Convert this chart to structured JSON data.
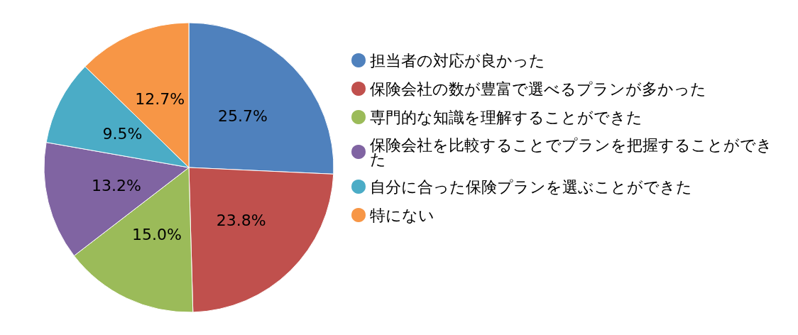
{
  "chart_data": {
    "type": "pie",
    "categories": [
      "担当者の対応が良かった",
      "保険会社の数が豊富で選べるプランが多かった",
      "専門的な知識を理解することができた",
      "保険会社を比較することでプランを把握することができた",
      "自分に合った保険プランを選ぶことができた",
      "特にない"
    ],
    "values": [
      25.7,
      23.8,
      15.0,
      13.2,
      9.5,
      12.7
    ],
    "colors": [
      "#4f81bd",
      "#c0504d",
      "#9bbb59",
      "#8064a2",
      "#4bacc6",
      "#f79646"
    ],
    "value_labels": [
      "25.7%",
      "23.8%",
      "15.0%",
      "13.2%",
      "9.5%",
      "12.7%"
    ],
    "legend": "right"
  }
}
